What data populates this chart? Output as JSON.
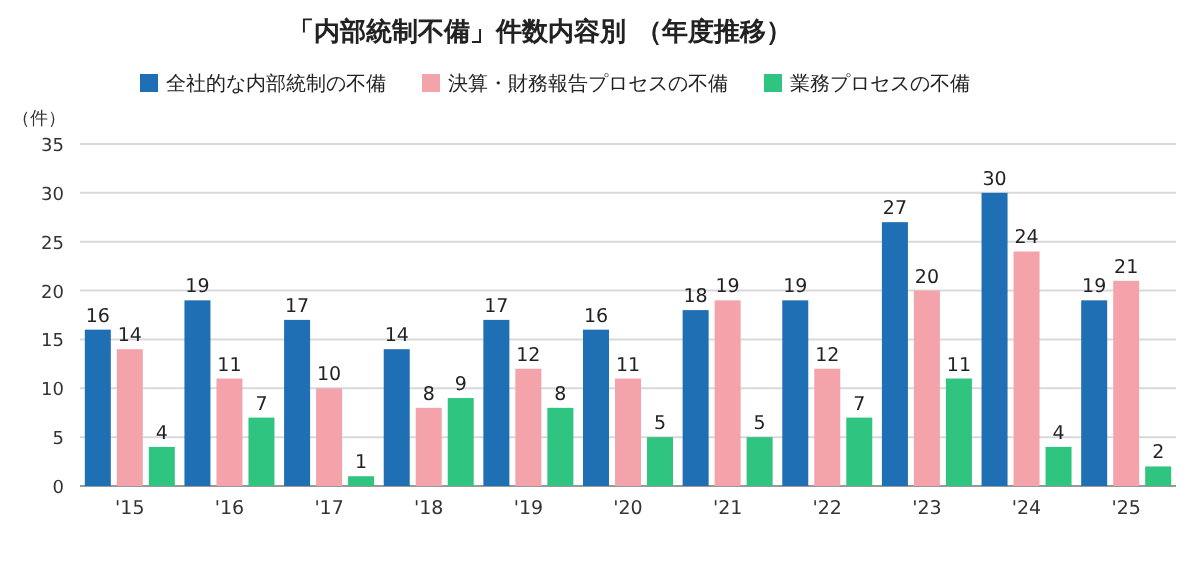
{
  "chart_data": {
    "type": "bar",
    "title": "「内部統制不備」件数内容別 （年度推移）",
    "ylabel": "（件）",
    "categories": [
      "'15",
      "'16",
      "'17",
      "'18",
      "'19",
      "'20",
      "'21",
      "'22",
      "'23",
      "'24",
      "'25"
    ],
    "series": [
      {
        "name": "全社的な内部統制の不備",
        "color": "#1f6fb4",
        "values": [
          16,
          19,
          17,
          14,
          17,
          16,
          18,
          19,
          27,
          30,
          19
        ]
      },
      {
        "name": "決算・財務報告プロセスの不備",
        "color": "#f4a3aa",
        "values": [
          14,
          11,
          10,
          8,
          12,
          11,
          19,
          12,
          20,
          24,
          21
        ]
      },
      {
        "name": "業務プロセスの不備",
        "color": "#2fc47f",
        "values": [
          4,
          7,
          1,
          9,
          8,
          5,
          5,
          7,
          11,
          4,
          2
        ]
      }
    ],
    "ylim": [
      0,
      35
    ],
    "yticks": [
      0,
      5,
      10,
      15,
      20,
      25,
      30,
      35
    ],
    "grid": "y",
    "legend": "top",
    "data_labels": true
  }
}
